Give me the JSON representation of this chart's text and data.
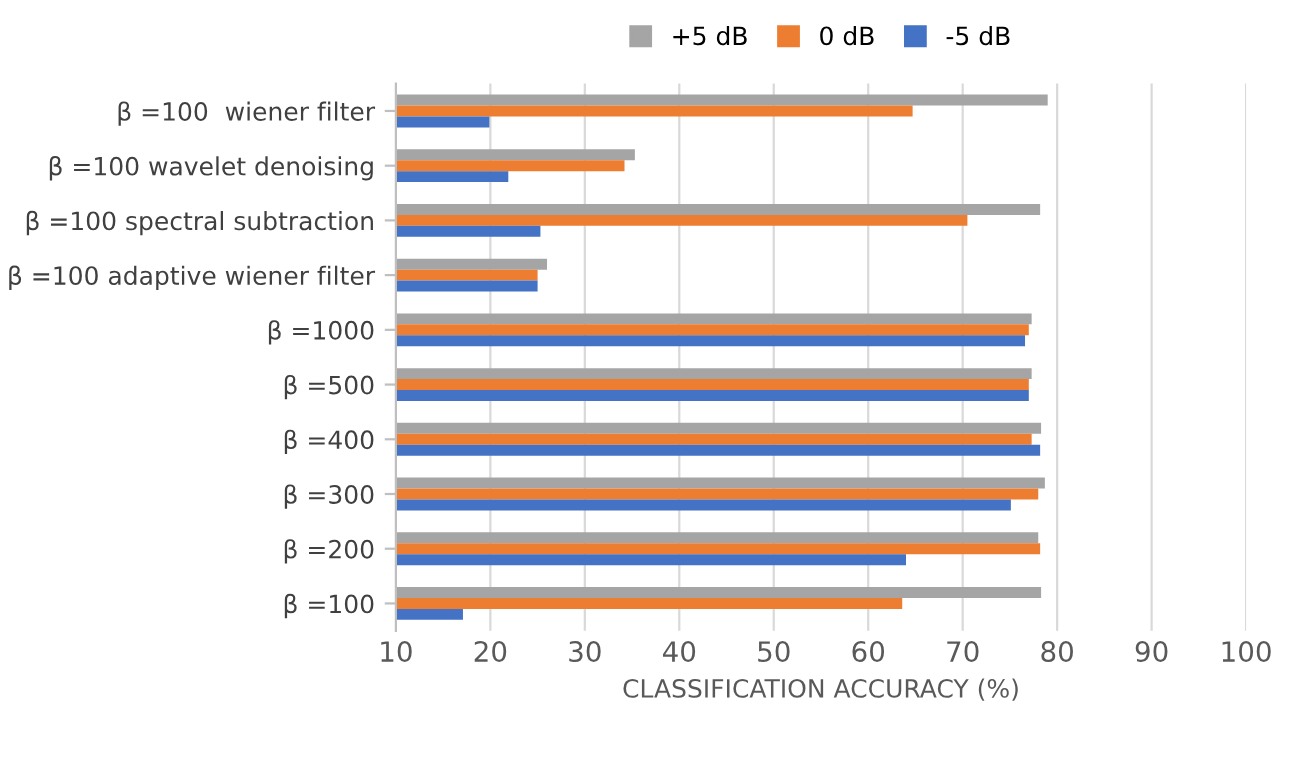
{
  "chart_data": {
    "type": "bar",
    "orientation": "horizontal",
    "xlabel": "CLASSIFICATION ACCURACY (%)",
    "categories": [
      "β =100  wiener filter",
      "β =100 wavelet denoising",
      "β =100 spectral subtraction",
      "β =100 adaptive wiener filter",
      "β =1000",
      "β =500",
      "β =400",
      "β =300",
      "β =200",
      "β =100"
    ],
    "series": [
      {
        "name": "+5 dB",
        "color": "#a5a5a5",
        "values": [
          79.0,
          35.3,
          78.2,
          26.0,
          77.3,
          77.3,
          78.3,
          78.7,
          78.0,
          78.3
        ]
      },
      {
        "name": "0 dB",
        "color": "#ed7d31",
        "values": [
          64.7,
          34.2,
          70.5,
          25.0,
          77.0,
          77.0,
          77.3,
          78.0,
          78.2,
          63.6
        ]
      },
      {
        "name": "-5 dB",
        "color": "#4472c4",
        "values": [
          19.9,
          21.9,
          25.3,
          25.0,
          76.6,
          77.0,
          78.2,
          75.1,
          64.0,
          17.1
        ]
      }
    ],
    "xlim": [
      10,
      100
    ],
    "xticks": [
      10,
      20,
      30,
      40,
      50,
      60,
      70,
      80,
      90,
      100
    ],
    "grid": "x",
    "legend": "top"
  }
}
